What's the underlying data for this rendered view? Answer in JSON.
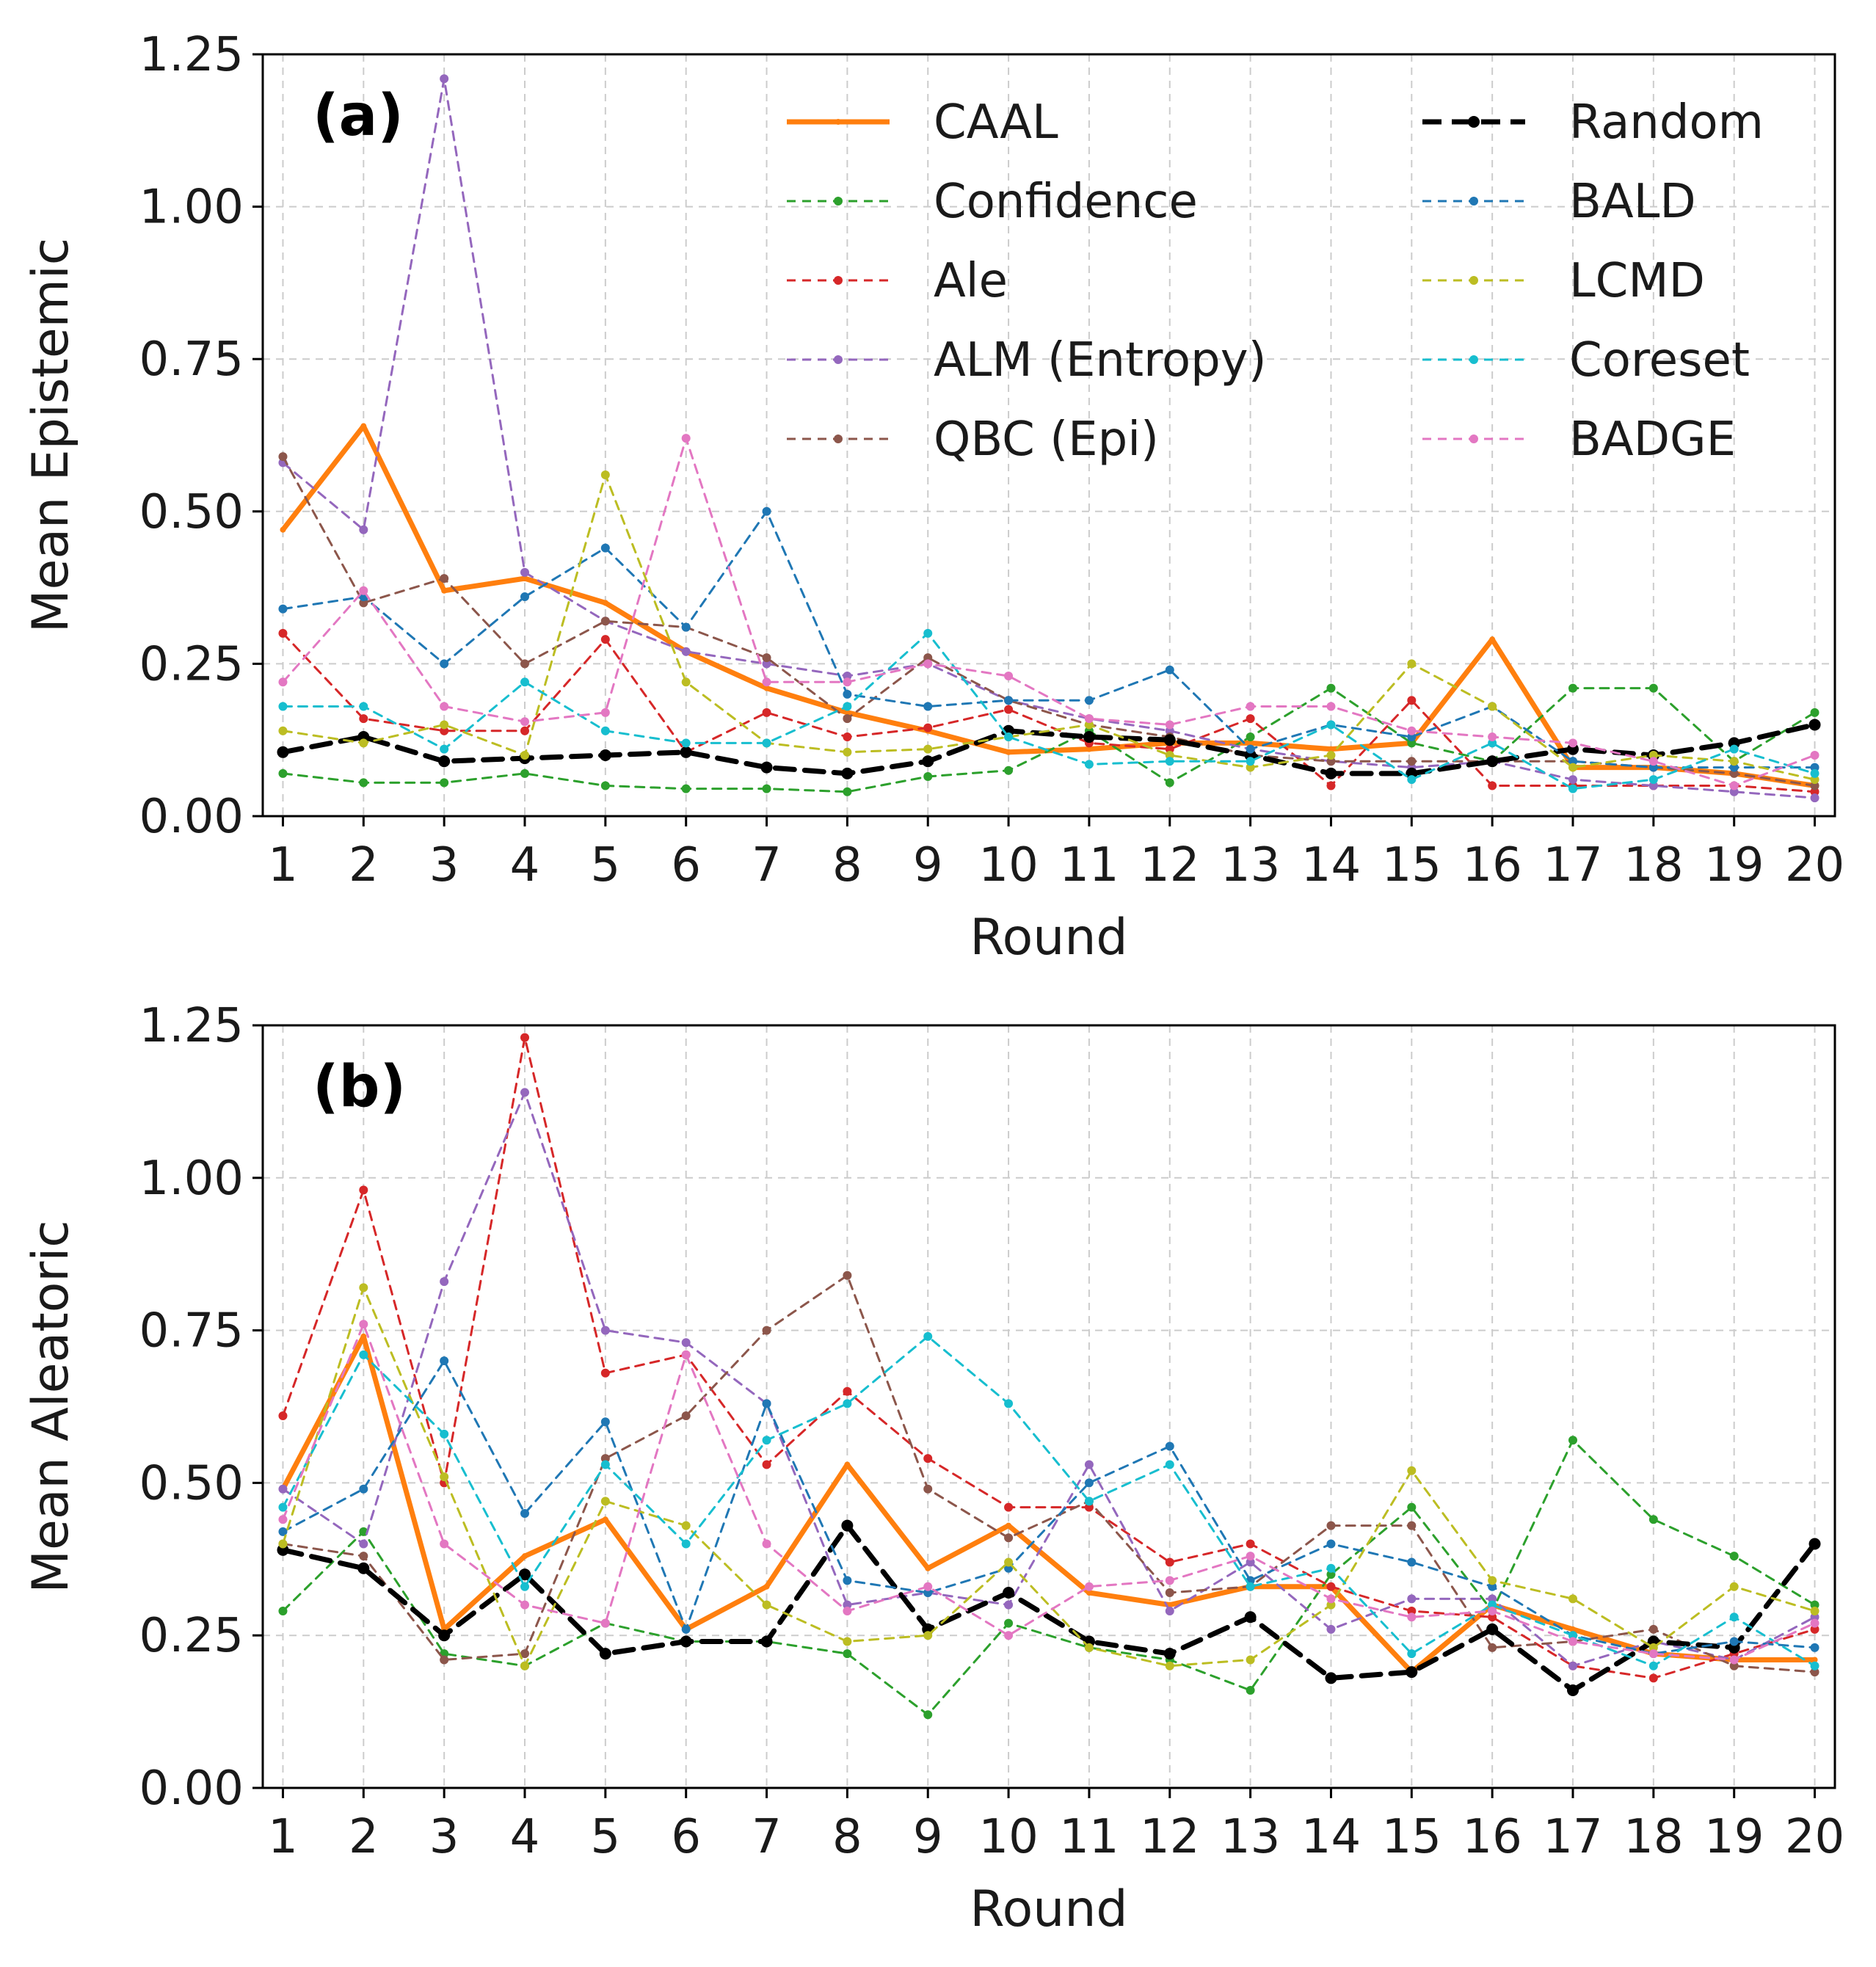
{
  "chart_data": [
    {
      "type": "line",
      "panel_label": "(a)",
      "xlabel": "Round",
      "ylabel": "Mean Epistemic",
      "x": [
        1,
        2,
        3,
        4,
        5,
        6,
        7,
        8,
        9,
        10,
        11,
        12,
        13,
        14,
        15,
        16,
        17,
        18,
        19,
        20
      ],
      "x_tick_labels": [
        "1",
        "2",
        "3",
        "4",
        "5",
        "6",
        "7",
        "8",
        "9",
        "10",
        "11",
        "12",
        "13",
        "14",
        "15",
        "16",
        "17",
        "18",
        "19",
        "20"
      ],
      "ylim": [
        0,
        1.25
      ],
      "y_ticks": [
        "0.00",
        "0.25",
        "0.50",
        "0.75",
        "1.00",
        "1.25"
      ],
      "grid": true,
      "legend_position": "top-right",
      "series": [
        {
          "name": "CAAL",
          "color": "#ff7f0e",
          "style": "solid",
          "values": [
            0.47,
            0.64,
            0.37,
            0.39,
            0.35,
            0.27,
            0.21,
            0.17,
            0.14,
            0.105,
            0.11,
            0.12,
            0.12,
            0.11,
            0.12,
            0.29,
            0.08,
            0.08,
            0.07,
            0.05
          ]
        },
        {
          "name": "Confidence",
          "color": "#2ca02c",
          "style": "dashed",
          "values": [
            0.07,
            0.055,
            0.055,
            0.07,
            0.05,
            0.045,
            0.045,
            0.04,
            0.065,
            0.075,
            0.14,
            0.055,
            0.13,
            0.21,
            0.12,
            0.09,
            0.21,
            0.21,
            0.09,
            0.17
          ]
        },
        {
          "name": "Ale",
          "color": "#d62728",
          "style": "dashed",
          "values": [
            0.3,
            0.16,
            0.14,
            0.14,
            0.29,
            0.105,
            0.17,
            0.13,
            0.145,
            0.175,
            0.12,
            0.11,
            0.16,
            0.05,
            0.19,
            0.05,
            0.05,
            0.05,
            0.05,
            0.04
          ]
        },
        {
          "name": "ALM (Entropy)",
          "color": "#9467bd",
          "style": "dashed",
          "values": [
            0.58,
            0.47,
            1.21,
            0.4,
            0.32,
            0.27,
            0.25,
            0.23,
            0.25,
            0.19,
            0.16,
            0.14,
            0.11,
            0.09,
            0.08,
            0.09,
            0.06,
            0.05,
            0.04,
            0.03
          ]
        },
        {
          "name": "QBC (Epi)",
          "color": "#8c564b",
          "style": "dashed",
          "values": [
            0.59,
            0.35,
            0.39,
            0.25,
            0.32,
            0.31,
            0.26,
            0.16,
            0.26,
            0.19,
            0.15,
            0.13,
            0.1,
            0.09,
            0.09,
            0.09,
            0.09,
            0.08,
            0.07,
            0.05
          ]
        },
        {
          "name": "Random",
          "color": "#000000",
          "style": "dashed-bold",
          "values": [
            0.105,
            0.13,
            0.09,
            0.095,
            0.1,
            0.105,
            0.08,
            0.07,
            0.09,
            0.14,
            0.13,
            0.125,
            0.1,
            0.07,
            0.07,
            0.09,
            0.11,
            0.1,
            0.12,
            0.15
          ]
        },
        {
          "name": "BALD",
          "color": "#1f77b4",
          "style": "dashed",
          "values": [
            0.34,
            0.36,
            0.25,
            0.36,
            0.44,
            0.31,
            0.5,
            0.2,
            0.18,
            0.19,
            0.19,
            0.24,
            0.11,
            0.15,
            0.13,
            0.18,
            0.09,
            0.08,
            0.08,
            0.08
          ]
        },
        {
          "name": "LCMD",
          "color": "#bcbd22",
          "style": "dashed",
          "values": [
            0.14,
            0.12,
            0.15,
            0.1,
            0.56,
            0.22,
            0.12,
            0.105,
            0.11,
            0.13,
            0.15,
            0.1,
            0.08,
            0.1,
            0.25,
            0.18,
            0.08,
            0.1,
            0.09,
            0.06
          ]
        },
        {
          "name": "Coreset",
          "color": "#17becf",
          "style": "dashed",
          "values": [
            0.18,
            0.18,
            0.11,
            0.22,
            0.14,
            0.12,
            0.12,
            0.18,
            0.3,
            0.13,
            0.085,
            0.09,
            0.09,
            0.15,
            0.06,
            0.12,
            0.045,
            0.06,
            0.11,
            0.07
          ]
        },
        {
          "name": "BADGE",
          "color": "#e377c2",
          "style": "dashed",
          "values": [
            0.22,
            0.37,
            0.18,
            0.155,
            0.17,
            0.62,
            0.22,
            0.22,
            0.25,
            0.23,
            0.16,
            0.15,
            0.18,
            0.18,
            0.14,
            0.13,
            0.12,
            0.09,
            0.05,
            0.1
          ]
        }
      ]
    },
    {
      "type": "line",
      "panel_label": "(b)",
      "xlabel": "Round",
      "ylabel": "Mean Aleatoric",
      "x": [
        1,
        2,
        3,
        4,
        5,
        6,
        7,
        8,
        9,
        10,
        11,
        12,
        13,
        14,
        15,
        16,
        17,
        18,
        19,
        20
      ],
      "x_tick_labels": [
        "1",
        "2",
        "3",
        "4",
        "5",
        "6",
        "7",
        "8",
        "9",
        "10",
        "11",
        "12",
        "13",
        "14",
        "15",
        "16",
        "17",
        "18",
        "19",
        "20"
      ],
      "ylim": [
        0,
        1.25
      ],
      "y_ticks": [
        "0.00",
        "0.25",
        "0.50",
        "0.75",
        "1.00",
        "1.25"
      ],
      "grid": true,
      "series": [
        {
          "name": "CAAL",
          "color": "#ff7f0e",
          "style": "solid",
          "values": [
            0.49,
            0.74,
            0.26,
            0.38,
            0.44,
            0.26,
            0.33,
            0.53,
            0.36,
            0.43,
            0.32,
            0.3,
            0.33,
            0.33,
            0.19,
            0.3,
            0.26,
            0.22,
            0.21,
            0.21
          ]
        },
        {
          "name": "Confidence",
          "color": "#2ca02c",
          "style": "dashed",
          "values": [
            0.29,
            0.42,
            0.22,
            0.2,
            0.27,
            0.24,
            0.24,
            0.22,
            0.12,
            0.27,
            0.23,
            0.21,
            0.16,
            0.35,
            0.46,
            0.29,
            0.57,
            0.44,
            0.38,
            0.3
          ]
        },
        {
          "name": "Ale",
          "color": "#d62728",
          "style": "dashed",
          "values": [
            0.61,
            0.98,
            0.5,
            1.23,
            0.68,
            0.71,
            0.53,
            0.65,
            0.54,
            0.46,
            0.46,
            0.37,
            0.4,
            0.33,
            0.29,
            0.28,
            0.2,
            0.18,
            0.22,
            0.26
          ]
        },
        {
          "name": "ALM (Entropy)",
          "color": "#9467bd",
          "style": "dashed",
          "values": [
            0.49,
            0.4,
            0.83,
            1.14,
            0.75,
            0.73,
            0.63,
            0.3,
            0.32,
            0.3,
            0.53,
            0.29,
            0.37,
            0.26,
            0.31,
            0.31,
            0.2,
            0.24,
            0.21,
            0.28
          ]
        },
        {
          "name": "QBC (Epi)",
          "color": "#8c564b",
          "style": "dashed",
          "values": [
            0.4,
            0.38,
            0.21,
            0.22,
            0.54,
            0.61,
            0.75,
            0.84,
            0.49,
            0.41,
            0.47,
            0.32,
            0.33,
            0.43,
            0.43,
            0.23,
            0.24,
            0.26,
            0.2,
            0.19
          ]
        },
        {
          "name": "Random",
          "color": "#000000",
          "style": "dashed-bold",
          "values": [
            0.39,
            0.36,
            0.25,
            0.35,
            0.22,
            0.24,
            0.24,
            0.43,
            0.26,
            0.32,
            0.24,
            0.22,
            0.28,
            0.18,
            0.19,
            0.26,
            0.16,
            0.24,
            0.23,
            0.4
          ]
        },
        {
          "name": "BALD",
          "color": "#1f77b4",
          "style": "dashed",
          "values": [
            0.42,
            0.49,
            0.7,
            0.45,
            0.6,
            0.26,
            0.63,
            0.34,
            0.32,
            0.36,
            0.5,
            0.56,
            0.34,
            0.4,
            0.37,
            0.33,
            0.25,
            0.22,
            0.24,
            0.23
          ]
        },
        {
          "name": "LCMD",
          "color": "#bcbd22",
          "style": "dashed",
          "values": [
            0.4,
            0.82,
            0.51,
            0.2,
            0.47,
            0.43,
            0.3,
            0.24,
            0.25,
            0.37,
            0.23,
            0.2,
            0.21,
            0.3,
            0.52,
            0.34,
            0.31,
            0.23,
            0.33,
            0.29
          ]
        },
        {
          "name": "Coreset",
          "color": "#17becf",
          "style": "dashed",
          "values": [
            0.46,
            0.71,
            0.58,
            0.33,
            0.53,
            0.4,
            0.57,
            0.63,
            0.74,
            0.63,
            0.47,
            0.53,
            0.33,
            0.36,
            0.22,
            0.3,
            0.25,
            0.2,
            0.28,
            0.2
          ]
        },
        {
          "name": "BADGE",
          "color": "#e377c2",
          "style": "dashed",
          "values": [
            0.44,
            0.76,
            0.4,
            0.3,
            0.27,
            0.71,
            0.4,
            0.29,
            0.33,
            0.25,
            0.33,
            0.34,
            0.38,
            0.31,
            0.28,
            0.29,
            0.24,
            0.22,
            0.21,
            0.27
          ]
        }
      ]
    }
  ]
}
